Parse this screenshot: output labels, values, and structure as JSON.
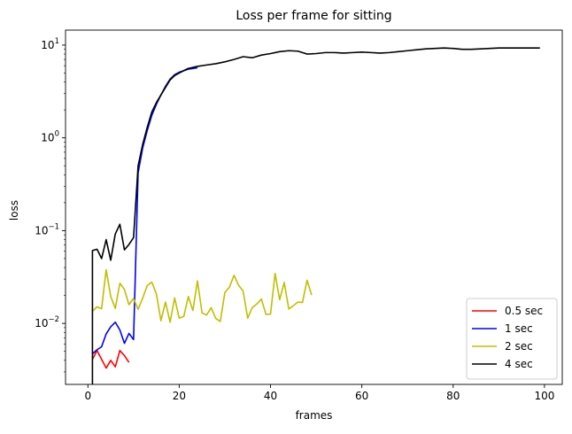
{
  "chart_data": {
    "type": "line",
    "title": "Loss per frame for sitting",
    "xlabel": "frames",
    "ylabel": "loss",
    "xlim": [
      -4.9,
      103.9
    ],
    "ylim": [
      0.0022,
      14.5
    ],
    "yscale": "log",
    "grid": false,
    "legend": "bottom-right",
    "x_ticks": [
      {
        "value": 0,
        "label": "0"
      },
      {
        "value": 20,
        "label": "20"
      },
      {
        "value": 40,
        "label": "40"
      },
      {
        "value": 60,
        "label": "60"
      },
      {
        "value": 80,
        "label": "80"
      },
      {
        "value": 100,
        "label": "100"
      }
    ],
    "y_ticks": [
      {
        "value": 0.01,
        "base": "10",
        "exp": "−2"
      },
      {
        "value": 0.1,
        "base": "10",
        "exp": "−1"
      },
      {
        "value": 1,
        "base": "10",
        "exp": "0"
      },
      {
        "value": 10,
        "base": "10",
        "exp": "1"
      }
    ],
    "series": [
      {
        "name": "0.5 sec",
        "color": "#ff0000",
        "x": [
          1,
          2,
          3,
          4,
          5,
          6,
          7,
          8,
          9
        ],
        "values": [
          0.0041,
          0.0051,
          0.0041,
          0.0033,
          0.004,
          0.0034,
          0.0051,
          0.0045,
          0.0038
        ]
      },
      {
        "name": "1 sec",
        "color": "#0000ff",
        "x": [
          1,
          2,
          3,
          4,
          5,
          6,
          7,
          8,
          9,
          10,
          11,
          12,
          13,
          14,
          15,
          16,
          17,
          18,
          19,
          20,
          21,
          22,
          23,
          24
        ],
        "values": [
          0.0047,
          0.0052,
          0.0056,
          0.0077,
          0.0092,
          0.0103,
          0.0085,
          0.0061,
          0.0078,
          0.0067,
          0.42,
          0.78,
          1.2,
          1.75,
          2.3,
          2.9,
          3.6,
          4.3,
          4.8,
          5.1,
          5.3,
          5.5,
          5.6,
          5.7
        ]
      },
      {
        "name": "2 sec",
        "color": "#bfbf00",
        "x": [
          1,
          2,
          3,
          4,
          5,
          6,
          7,
          8,
          9,
          10,
          11,
          12,
          13,
          14,
          15,
          16,
          17,
          18,
          19,
          20,
          21,
          22,
          23,
          24,
          25,
          26,
          27,
          28,
          29,
          30,
          31,
          32,
          33,
          34,
          35,
          36,
          37,
          38,
          39,
          40,
          41,
          42,
          43,
          44,
          45,
          46,
          47,
          48,
          49
        ],
        "values": [
          0.0135,
          0.0151,
          0.0144,
          0.0378,
          0.0195,
          0.0145,
          0.0271,
          0.0232,
          0.0159,
          0.0186,
          0.0142,
          0.0187,
          0.0256,
          0.0279,
          0.0208,
          0.0107,
          0.017,
          0.0103,
          0.0188,
          0.0114,
          0.0119,
          0.0195,
          0.0138,
          0.0287,
          0.013,
          0.0123,
          0.0148,
          0.0113,
          0.0105,
          0.0215,
          0.0246,
          0.033,
          0.0258,
          0.0223,
          0.0114,
          0.0148,
          0.0162,
          0.0183,
          0.0125,
          0.0126,
          0.0345,
          0.018,
          0.0276,
          0.0143,
          0.0155,
          0.017,
          0.0168,
          0.0292,
          0.0202
        ]
      },
      {
        "name": "4 sec",
        "color": "#000000",
        "x": [
          1,
          1,
          2,
          3,
          4,
          5,
          6,
          7,
          8,
          9,
          10,
          11,
          12,
          13,
          14,
          15,
          16,
          17,
          18,
          19,
          20,
          21,
          22,
          24,
          26,
          28,
          30,
          32,
          34,
          36,
          38,
          40,
          42,
          44,
          46,
          48,
          50,
          52,
          54,
          56,
          58,
          60,
          62,
          64,
          66,
          68,
          70,
          72,
          74,
          76,
          78,
          80,
          82,
          84,
          86,
          88,
          90,
          92,
          94,
          96,
          98,
          99
        ],
        "values": [
          0.0022,
          0.061,
          0.063,
          0.05,
          0.08,
          0.048,
          0.092,
          0.117,
          0.062,
          0.071,
          0.084,
          0.5,
          0.85,
          1.3,
          1.9,
          2.4,
          2.9,
          3.5,
          4.2,
          4.7,
          5.0,
          5.3,
          5.6,
          5.9,
          6.1,
          6.3,
          6.6,
          7.0,
          7.5,
          7.3,
          7.8,
          8.1,
          8.5,
          8.7,
          8.6,
          8.0,
          8.1,
          8.3,
          8.3,
          8.2,
          8.3,
          8.4,
          8.3,
          8.2,
          8.3,
          8.5,
          8.7,
          8.9,
          9.1,
          9.2,
          9.3,
          9.2,
          9.0,
          9.0,
          9.1,
          9.2,
          9.3,
          9.3,
          9.3,
          9.3,
          9.3,
          9.3
        ]
      }
    ]
  }
}
